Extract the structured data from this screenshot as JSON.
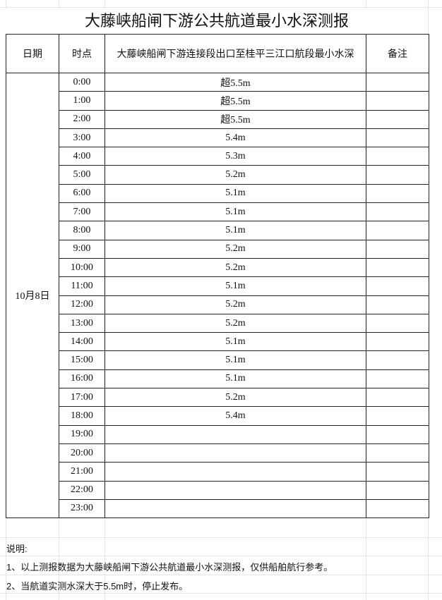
{
  "title": "大藤峡船闸下游公共航道最小水深测报",
  "headers": {
    "date": "日期",
    "time": "时点",
    "depth": "大藤峡船闸下游连接段出口至桂平三江口航段最小水深",
    "remark": "备注"
  },
  "date": "10月8日",
  "rows": [
    {
      "time": "0:00",
      "depth": "超5.5m"
    },
    {
      "time": "1:00",
      "depth": "超5.5m"
    },
    {
      "time": "2:00",
      "depth": "超5.5m"
    },
    {
      "time": "3:00",
      "depth": "5.4m"
    },
    {
      "time": "4:00",
      "depth": "5.3m"
    },
    {
      "time": "5:00",
      "depth": "5.2m"
    },
    {
      "time": "6:00",
      "depth": "5.1m"
    },
    {
      "time": "7:00",
      "depth": "5.1m"
    },
    {
      "time": "8:00",
      "depth": "5.1m"
    },
    {
      "time": "9:00",
      "depth": "5.2m"
    },
    {
      "time": "10:00",
      "depth": "5.2m"
    },
    {
      "time": "11:00",
      "depth": "5.1m"
    },
    {
      "time": "12:00",
      "depth": "5.2m"
    },
    {
      "time": "13:00",
      "depth": "5.2m"
    },
    {
      "time": "14:00",
      "depth": "5.1m"
    },
    {
      "time": "15:00",
      "depth": "5.1m"
    },
    {
      "time": "16:00",
      "depth": "5.1m"
    },
    {
      "time": "17:00",
      "depth": "5.2m"
    },
    {
      "time": "18:00",
      "depth": "5.4m"
    },
    {
      "time": "19:00",
      "depth": ""
    },
    {
      "time": "20:00",
      "depth": ""
    },
    {
      "time": "21:00",
      "depth": ""
    },
    {
      "time": "22:00",
      "depth": ""
    },
    {
      "time": "23:00",
      "depth": ""
    }
  ],
  "notes": {
    "heading": "说明:",
    "line1": "1、以上测报数据为大藤峡船闸下游公共航道最小水深测报，仅供船舶航行参考。",
    "line2": "2、当航道实测水深大于5.5m时，停止发布。"
  }
}
